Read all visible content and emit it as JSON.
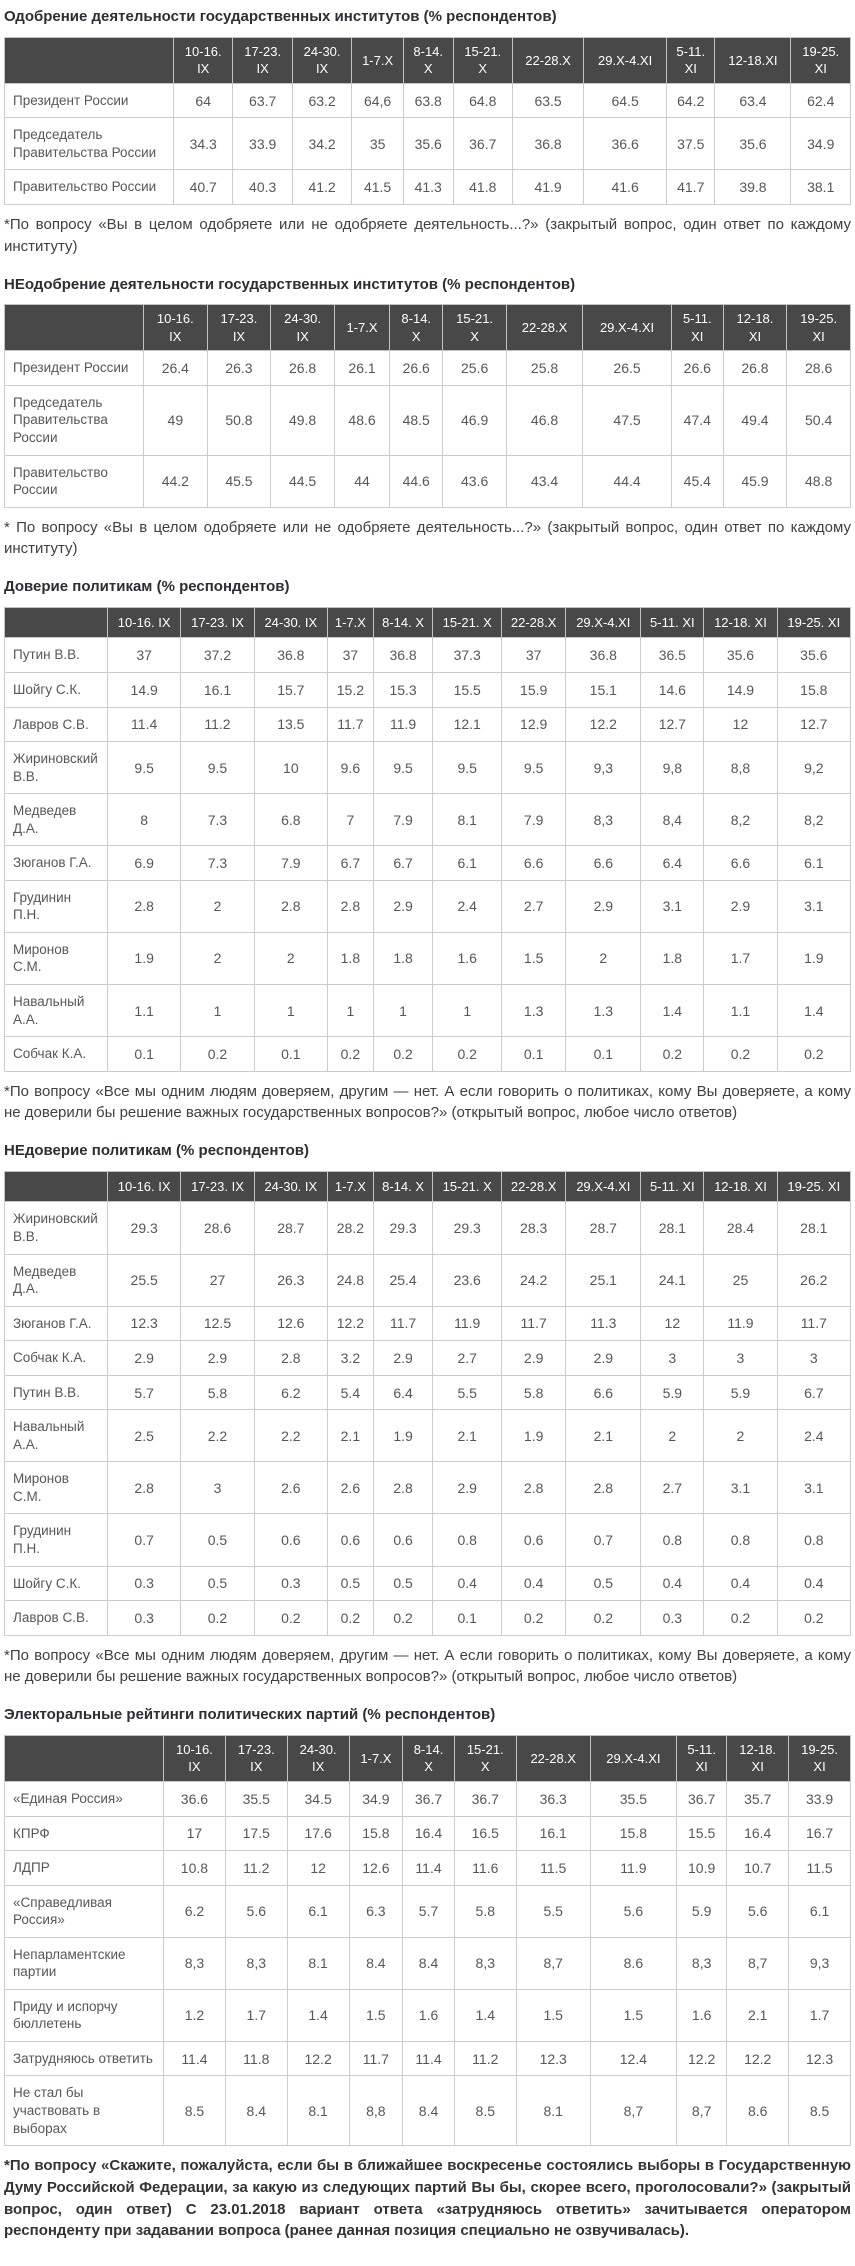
{
  "sections": [
    {
      "id": "approval",
      "title": "Одобрение деятельности государственных институтов (% респондентов)",
      "footnote": "*По вопросу «Вы в целом одобряете или не одобряете деятельность...?» (закрытый вопрос, один ответ по каждому институту)",
      "table": {
        "columns": [
          "10-16.\nIX",
          "17-23.\nIX",
          "24-30.\nIX",
          "1-7.X",
          "8-14.\nX",
          "15-21.\nX",
          "22-28.X",
          "29.X-4.XI",
          "5-11.\nXI",
          "12-18.XI",
          "19-25.\nXI"
        ],
        "rows": [
          {
            "label": "Президент России",
            "values": [
              "64",
              "63.7",
              "63.2",
              "64,6",
              "63.8",
              "64.8",
              "63.5",
              "64.5",
              "64.2",
              "63.4",
              "62.4"
            ]
          },
          {
            "label": "Председатель Правительства России",
            "values": [
              "34.3",
              "33.9",
              "34.2",
              "35",
              "35.6",
              "36.7",
              "36.8",
              "36.6",
              "37.5",
              "35.6",
              "34.9"
            ]
          },
          {
            "label": "Правительство России",
            "values": [
              "40.7",
              "40.3",
              "41.2",
              "41.5",
              "41.3",
              "41.8",
              "41.9",
              "41.6",
              "41.7",
              "39.8",
              "38.1"
            ]
          }
        ]
      }
    },
    {
      "id": "disapproval",
      "title": "НЕодобрение деятельности государственных институтов (% респондентов)",
      "footnote": "* По вопросу «Вы в целом одобряете или не одобряете деятельность...?» (закрытый вопрос, один ответ по каждому институту)",
      "table": {
        "columns": [
          "10-16.\nIX",
          "17-23.\nIX",
          "24-30.\nIX",
          "1-7.X",
          "8-14.\nX",
          "15-21.\nX",
          "22-28.X",
          "29.X-4.XI",
          "5-11.\nXI",
          "12-18.\nXI",
          "19-25.\nXI"
        ],
        "rows": [
          {
            "label": "Президент России",
            "values": [
              "26.4",
              "26.3",
              "26.8",
              "26.1",
              "26.6",
              "25.6",
              "25.8",
              "26.5",
              "26.6",
              "26.8",
              "28.6"
            ]
          },
          {
            "label": "Председатель Правительства России",
            "values": [
              "49",
              "50.8",
              "49.8",
              "48.6",
              "48.5",
              "46.9",
              "46.8",
              "47.5",
              "47.4",
              "49.4",
              "50.4"
            ]
          },
          {
            "label": "Правительство России",
            "values": [
              "44.2",
              "45.5",
              "44.5",
              "44",
              "44.6",
              "43.6",
              "43.4",
              "44.4",
              "45.4",
              "45.9",
              "48.8"
            ]
          }
        ]
      }
    },
    {
      "id": "trust",
      "title": "Доверие политикам (% респондентов)",
      "footnote": "*По вопросу «Все мы одним людям доверяем, другим — нет. А если говорить о политиках, кому Вы доверяете, а кому не доверили бы решение важных государственных вопросов?» (открытый вопрос, любое число ответов)",
      "table": {
        "columns": [
          "10-16. IX",
          "17-23. IX",
          "24-30. IX",
          "1-7.X",
          "8-14. X",
          "15-21. X",
          "22-28.X",
          "29.X-4.XI",
          "5-11. XI",
          "12-18. XI",
          "19-25. XI"
        ],
        "rows": [
          {
            "label": "Путин В.В.",
            "values": [
              "37",
              "37.2",
              "36.8",
              "37",
              "36.8",
              "37.3",
              "37",
              "36.8",
              "36.5",
              "35.6",
              "35.6"
            ]
          },
          {
            "label": "Шойгу С.К.",
            "values": [
              "14.9",
              "16.1",
              "15.7",
              "15.2",
              "15.3",
              "15.5",
              "15.9",
              "15.1",
              "14.6",
              "14.9",
              "15.8"
            ]
          },
          {
            "label": "Лавров С.В.",
            "values": [
              "11.4",
              "11.2",
              "13.5",
              "11.7",
              "11.9",
              "12.1",
              "12.9",
              "12.2",
              "12.7",
              "12",
              "12.7"
            ]
          },
          {
            "label": "Жириновский В.В.",
            "values": [
              "9.5",
              "9.5",
              "10",
              "9.6",
              "9.5",
              "9.5",
              "9.5",
              "9,3",
              "9,8",
              "8,8",
              "9,2"
            ]
          },
          {
            "label": "Медведев Д.А.",
            "values": [
              "8",
              "7.3",
              "6.8",
              "7",
              "7.9",
              "8.1",
              "7.9",
              "8,3",
              "8,4",
              "8,2",
              "8,2"
            ]
          },
          {
            "label": "Зюганов Г.А.",
            "values": [
              "6.9",
              "7.3",
              "7.9",
              "6.7",
              "6.7",
              "6.1",
              "6.6",
              "6.6",
              "6.4",
              "6.6",
              "6.1"
            ]
          },
          {
            "label": "Грудинин П.Н.",
            "values": [
              "2.8",
              "2",
              "2.8",
              "2.8",
              "2.9",
              "2.4",
              "2.7",
              "2.9",
              "3.1",
              "2.9",
              "3.1"
            ]
          },
          {
            "label": "Миронов С.М.",
            "values": [
              "1.9",
              "2",
              "2",
              "1.8",
              "1.8",
              "1.6",
              "1.5",
              "2",
              "1.8",
              "1.7",
              "1.9"
            ]
          },
          {
            "label": "Навальный А.А.",
            "values": [
              "1.1",
              "1",
              "1",
              "1",
              "1",
              "1",
              "1.3",
              "1.3",
              "1.4",
              "1.1",
              "1.4"
            ]
          },
          {
            "label": "Собчак К.А.",
            "values": [
              "0.1",
              "0.2",
              "0.1",
              "0.2",
              "0.2",
              "0.2",
              "0.1",
              "0.1",
              "0.2",
              "0.2",
              "0.2"
            ]
          }
        ]
      }
    },
    {
      "id": "distrust",
      "title": "НЕдоверие политикам (% респондентов)",
      "footnote": "*По вопросу «Все мы одним людям доверяем, другим — нет. А если говорить о политиках, кому Вы доверяете, а кому не доверили бы решение важных государственных вопросов?» (открытый вопрос, любое число ответов)",
      "table": {
        "columns": [
          "10-16. IX",
          "17-23. IX",
          "24-30. IX",
          "1-7.X",
          "8-14. X",
          "15-21. X",
          "22-28.X",
          "29.X-4.XI",
          "5-11. XI",
          "12-18. XI",
          "19-25. XI"
        ],
        "rows": [
          {
            "label": "Жириновский В.В.",
            "values": [
              "29.3",
              "28.6",
              "28.7",
              "28.2",
              "29.3",
              "29.3",
              "28.3",
              "28.7",
              "28.1",
              "28.4",
              "28.1"
            ]
          },
          {
            "label": "Медведев Д.А.",
            "values": [
              "25.5",
              "27",
              "26.3",
              "24.8",
              "25.4",
              "23.6",
              "24.2",
              "25.1",
              "24.1",
              "25",
              "26.2"
            ]
          },
          {
            "label": "Зюганов Г.А.",
            "values": [
              "12.3",
              "12.5",
              "12.6",
              "12.2",
              "11.7",
              "11.9",
              "11.7",
              "11.3",
              "12",
              "11.9",
              "11.7"
            ]
          },
          {
            "label": "Собчак К.А.",
            "values": [
              "2.9",
              "2.9",
              "2.8",
              "3.2",
              "2.9",
              "2.7",
              "2.9",
              "2.9",
              "3",
              "3",
              "3"
            ]
          },
          {
            "label": "Путин В.В.",
            "values": [
              "5.7",
              "5.8",
              "6.2",
              "5.4",
              "6.4",
              "5.5",
              "5.8",
              "6.6",
              "5.9",
              "5.9",
              "6.7"
            ]
          },
          {
            "label": "Навальный А.А.",
            "values": [
              "2.5",
              "2.2",
              "2.2",
              "2.1",
              "1.9",
              "2.1",
              "1.9",
              "2.1",
              "2",
              "2",
              "2.4"
            ]
          },
          {
            "label": "Миронов С.М.",
            "values": [
              "2.8",
              "3",
              "2.6",
              "2.6",
              "2.8",
              "2.9",
              "2.8",
              "2.8",
              "2.7",
              "3.1",
              "3.1"
            ]
          },
          {
            "label": "Грудинин П.Н.",
            "values": [
              "0.7",
              "0.5",
              "0.6",
              "0.6",
              "0.6",
              "0.8",
              "0.6",
              "0.7",
              "0.8",
              "0.8",
              "0.8"
            ]
          },
          {
            "label": "Шойгу С.К.",
            "values": [
              "0.3",
              "0.5",
              "0.3",
              "0.5",
              "0.5",
              "0.4",
              "0.4",
              "0.5",
              "0.4",
              "0.4",
              "0.4"
            ]
          },
          {
            "label": "Лавров С.В.",
            "values": [
              "0.3",
              "0.2",
              "0.2",
              "0.2",
              "0.2",
              "0.1",
              "0.2",
              "0.2",
              "0.3",
              "0.2",
              "0.2"
            ]
          }
        ]
      }
    },
    {
      "id": "party-ratings",
      "title": "Электоральные рейтинги политических партий (% респондентов)",
      "footnote": "*По вопросу «Скажите, пожалуйста, если бы в ближайшее воскресенье состоялись выборы в Государственную Думу Российской Федерации, за какую из следующих партий Вы бы, скорее всего, проголосовали?» (закрытый вопрос, один ответ) С 23.01.2018 вариант ответа «затрудняюсь ответить» зачитывается оператором респонденту при задавании вопроса (ранее данная позиция специально не озвучивалась).",
      "table": {
        "columns": [
          "10-16.\nIX",
          "17-23.\nIX",
          "24-30.\nIX",
          "1-7.X",
          "8-14.\nX",
          "15-21.\nX",
          "22-28.X",
          "29.X-4.XI",
          "5-11.\nXI",
          "12-18.\nXI",
          "19-25.\nXI"
        ],
        "rows": [
          {
            "label": "«Единая Россия»",
            "values": [
              "36.6",
              "35.5",
              "34.5",
              "34.9",
              "36.7",
              "36.7",
              "36.3",
              "35.5",
              "36.7",
              "35.7",
              "33.9"
            ]
          },
          {
            "label": "КПРФ",
            "values": [
              "17",
              "17.5",
              "17.6",
              "15.8",
              "16.4",
              "16.5",
              "16.1",
              "15.8",
              "15.5",
              "16.4",
              "16.7"
            ]
          },
          {
            "label": "ЛДПР",
            "values": [
              "10.8",
              "11.2",
              "12",
              "12.6",
              "11.4",
              "11.6",
              "11.5",
              "11.9",
              "10.9",
              "10.7",
              "11.5"
            ]
          },
          {
            "label": "«Справедливая Россия»",
            "values": [
              "6.2",
              "5.6",
              "6.1",
              "6.3",
              "5.7",
              "5.8",
              "5.5",
              "5.6",
              "5.9",
              "5.6",
              "6.1"
            ]
          },
          {
            "label": "Непарламентские партии",
            "values": [
              "8,3",
              "8,3",
              "8.1",
              "8.4",
              "8.4",
              "8,3",
              "8,7",
              "8.6",
              "8,3",
              "8,7",
              "9,3"
            ]
          },
          {
            "label": "Приду и испорчу бюллетень",
            "values": [
              "1.2",
              "1.7",
              "1.4",
              "1.5",
              "1.6",
              "1.4",
              "1.5",
              "1.5",
              "1.6",
              "2.1",
              "1.7"
            ]
          },
          {
            "label": "Затрудняюсь ответить",
            "values": [
              "11.4",
              "11.8",
              "12.2",
              "11.7",
              "11.4",
              "11.2",
              "12.3",
              "12.4",
              "12.2",
              "12.2",
              "12.3"
            ]
          },
          {
            "label": "Не стал бы участвовать в выборах",
            "values": [
              "8.5",
              "8.4",
              "8.1",
              "8,8",
              "8.4",
              "8.5",
              "8.1",
              "8,7",
              "8,7",
              "8.6",
              "8.5"
            ]
          }
        ]
      }
    }
  ],
  "colors": {
    "header_bg": "#484848",
    "header_text": "#ffffff",
    "border": "#cccccc",
    "title_text": "#2d2d35",
    "cell_text": "#57575a"
  }
}
